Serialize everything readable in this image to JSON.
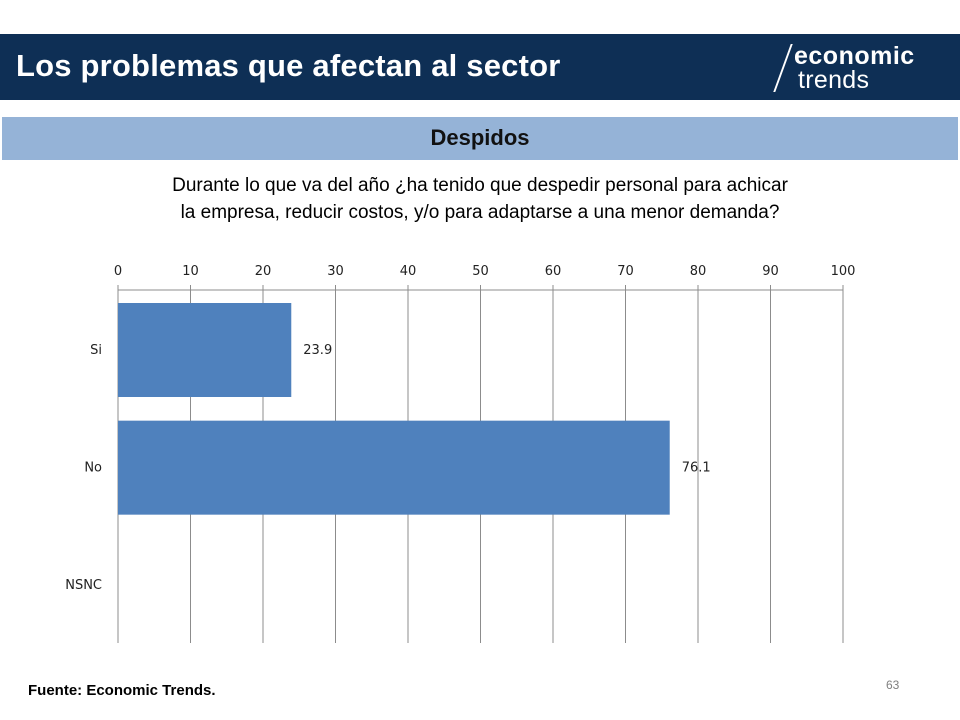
{
  "header": {
    "title": "Los problemas que afectan al sector",
    "logo": {
      "top": "economic",
      "bottom": "trends"
    },
    "background": "#0e2f55"
  },
  "section": {
    "title": "Despidos",
    "background": "#95b3d7"
  },
  "question": {
    "line1": "Durante lo que va del año ¿ha tenido que despedir personal para achicar",
    "line2": "la empresa, reducir costos, y/o para adaptarse a una menor demanda?"
  },
  "chart_data": {
    "type": "bar",
    "orientation": "horizontal",
    "categories": [
      "Si",
      "No",
      "NSNC"
    ],
    "values": [
      23.9,
      76.1,
      null
    ],
    "data_labels": [
      "23.9",
      "76.1",
      ""
    ],
    "x_ticks": [
      "0",
      "10",
      "20",
      "30",
      "40",
      "50",
      "60",
      "70",
      "80",
      "90",
      "100"
    ],
    "xlim": [
      0,
      100
    ],
    "x_axis_position": "top",
    "grid": true,
    "bar_color": "#4f81bd",
    "title": "",
    "xlabel": "",
    "ylabel": ""
  },
  "footer": {
    "source": "Fuente: Economic Trends.",
    "page": "63"
  }
}
